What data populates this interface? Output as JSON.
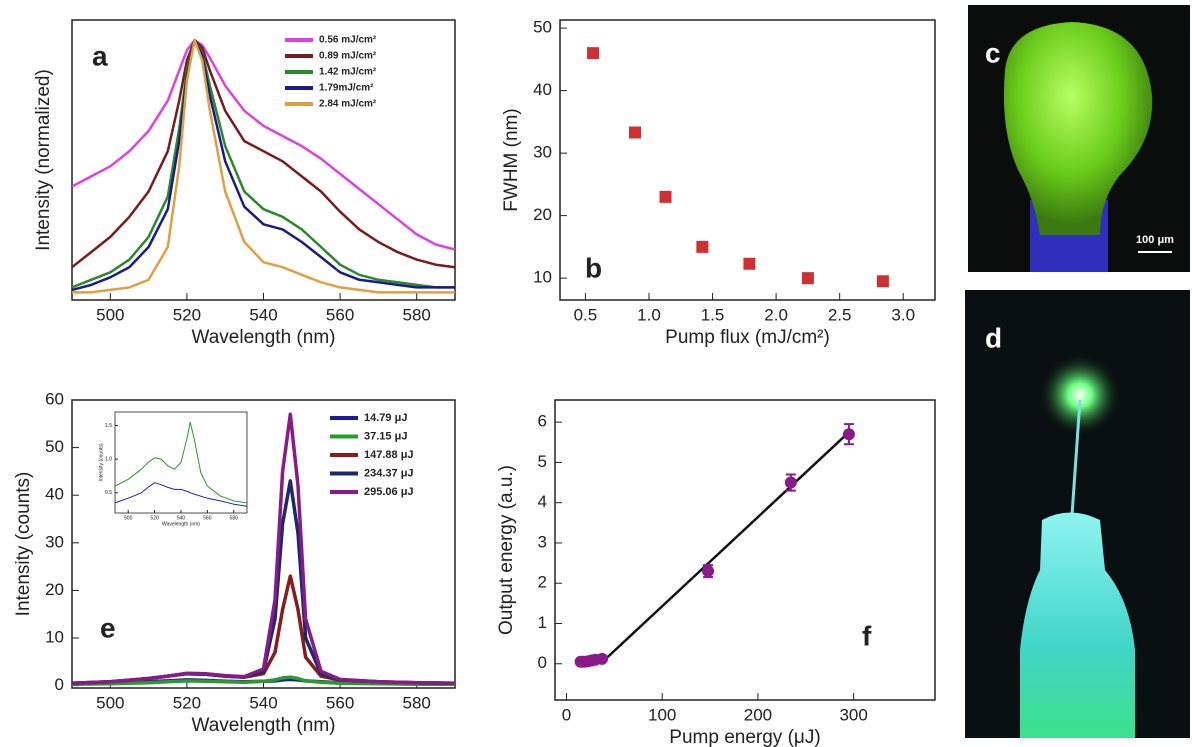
{
  "chart_data": [
    {
      "type": "line",
      "panel_label": "a",
      "xlabel": "Wavelength (nm)",
      "ylabel": "Intensity (normalized)",
      "x": [
        490,
        495,
        500,
        505,
        510,
        515,
        518,
        520,
        522,
        524,
        526,
        530,
        535,
        540,
        545,
        550,
        555,
        560,
        565,
        570,
        575,
        580,
        585,
        590
      ],
      "series": [
        {
          "name": "0.56 mJ/cm²",
          "color": "#e040e0",
          "values": [
            0.42,
            0.46,
            0.5,
            0.56,
            0.64,
            0.76,
            0.88,
            0.96,
            1.0,
            0.98,
            0.93,
            0.82,
            0.72,
            0.66,
            0.62,
            0.58,
            0.53,
            0.47,
            0.41,
            0.35,
            0.29,
            0.23,
            0.19,
            0.17
          ]
        },
        {
          "name": "0.89 mJ/cm²",
          "color": "#7a1a1a",
          "values": [
            0.1,
            0.16,
            0.22,
            0.3,
            0.4,
            0.56,
            0.76,
            0.92,
            1.0,
            0.97,
            0.88,
            0.72,
            0.6,
            0.56,
            0.52,
            0.46,
            0.4,
            0.32,
            0.25,
            0.2,
            0.16,
            0.13,
            0.11,
            0.1
          ]
        },
        {
          "name": "1.42 mJ/cm²",
          "color": "#2a8a2a",
          "values": [
            0.02,
            0.05,
            0.08,
            0.13,
            0.22,
            0.38,
            0.65,
            0.88,
            1.0,
            0.95,
            0.82,
            0.58,
            0.4,
            0.33,
            0.3,
            0.25,
            0.18,
            0.11,
            0.07,
            0.05,
            0.04,
            0.03,
            0.02,
            0.02
          ]
        },
        {
          "name": "1.79mJ/cm²",
          "color": "#1a1a8a",
          "values": [
            0.01,
            0.03,
            0.06,
            0.1,
            0.18,
            0.33,
            0.6,
            0.86,
            1.0,
            0.94,
            0.78,
            0.52,
            0.34,
            0.27,
            0.25,
            0.2,
            0.14,
            0.08,
            0.05,
            0.04,
            0.03,
            0.02,
            0.02,
            0.02
          ]
        },
        {
          "name": "2.84 mJ/cm²",
          "color": "#e0a040",
          "values": [
            0.0,
            0.0,
            0.01,
            0.02,
            0.05,
            0.18,
            0.5,
            0.84,
            1.0,
            0.92,
            0.72,
            0.4,
            0.2,
            0.12,
            0.1,
            0.07,
            0.04,
            0.02,
            0.01,
            0.0,
            0.0,
            0.0,
            0.0,
            0.0
          ]
        }
      ],
      "xlim": [
        490,
        590
      ],
      "xticks": [
        500,
        520,
        540,
        560,
        580
      ],
      "ylim": [
        -0.03,
        1.08
      ]
    },
    {
      "type": "scatter",
      "panel_label": "b",
      "xlabel": "Pump flux (mJ/cm²)",
      "ylabel": "FWHM (nm)",
      "color": "#d03030",
      "x": [
        0.56,
        0.89,
        1.13,
        1.42,
        1.79,
        2.25,
        2.84
      ],
      "values": [
        46,
        33.3,
        23,
        15,
        12.3,
        10,
        9.5
      ],
      "xlim": [
        0.3,
        3.25
      ],
      "xticks": [
        0.5,
        {
          "value": 1.0,
          "label": "1.0"
        },
        1.5,
        {
          "value": 2.0,
          "label": "2.0"
        },
        2.5,
        {
          "value": 3.0,
          "label": "3.0"
        }
      ],
      "ylim": [
        6.5,
        51.3
      ],
      "yticks": [
        10,
        20,
        30,
        40,
        50
      ]
    },
    {
      "type": "line",
      "panel_label": "e",
      "xlabel": "Wavelength (nm)",
      "ylabel": "Intensity (counts)",
      "x": [
        490,
        500,
        510,
        515,
        520,
        525,
        530,
        535,
        540,
        543,
        545,
        547,
        549,
        551,
        555,
        560,
        570,
        580,
        590
      ],
      "series": [
        {
          "name": "14.79 μJ",
          "color": "#1a1aa0",
          "values": [
            0.5,
            0.6,
            0.8,
            1.0,
            1.2,
            1.1,
            0.9,
            0.8,
            0.9,
            1.0,
            1.2,
            1.3,
            1.2,
            1.0,
            0.8,
            0.6,
            0.5,
            0.4,
            0.4
          ]
        },
        {
          "name": "37.15 μJ",
          "color": "#2a9a2a",
          "values": [
            0.3,
            0.4,
            0.6,
            0.8,
            1.0,
            0.9,
            0.8,
            0.7,
            0.9,
            1.2,
            1.6,
            1.8,
            1.5,
            1.0,
            0.7,
            0.5,
            0.4,
            0.3,
            0.3
          ]
        },
        {
          "name": "147.88 μJ",
          "color": "#8b1a1a",
          "values": [
            0.5,
            0.8,
            1.5,
            2.0,
            2.5,
            2.4,
            2.0,
            1.8,
            2.5,
            7,
            16,
            23,
            16,
            6,
            2,
            1.2,
            0.8,
            0.6,
            0.5
          ]
        },
        {
          "name": "234.37 μJ",
          "color": "#1a2a6a",
          "values": [
            0.5,
            0.8,
            1.5,
            2.0,
            2.5,
            2.4,
            2.0,
            1.8,
            3,
            14,
            34,
            43,
            32,
            10,
            2.5,
            1.2,
            0.8,
            0.6,
            0.5
          ]
        },
        {
          "name": "295.06 μJ",
          "color": "#8a1a8a",
          "values": [
            0.5,
            0.8,
            1.5,
            2.0,
            2.6,
            2.5,
            2.1,
            1.9,
            3.5,
            18,
            45,
            57,
            42,
            14,
            3,
            1.3,
            0.8,
            0.6,
            0.5
          ]
        }
      ],
      "xlim": [
        490,
        590
      ],
      "xticks": [
        500,
        520,
        540,
        560,
        580
      ],
      "ylim": [
        -0.5,
        60
      ],
      "yticks": [
        0,
        10,
        20,
        30,
        40,
        50,
        60
      ]
    },
    {
      "type": "line",
      "xlabel": "Wavelength (nm)",
      "ylabel": "Intensity (counts)",
      "x": [
        490,
        500,
        510,
        515,
        520,
        525,
        530,
        535,
        540,
        545,
        547,
        550,
        555,
        560,
        570,
        580,
        590
      ],
      "series": [
        {
          "color": "#2a9a2a",
          "values": [
            0.6,
            0.7,
            0.85,
            0.95,
            1.02,
            1.0,
            0.9,
            0.85,
            0.95,
            1.35,
            1.55,
            1.3,
            0.8,
            0.6,
            0.45,
            0.38,
            0.35
          ]
        },
        {
          "color": "#1a2aa0",
          "values": [
            0.35,
            0.42,
            0.5,
            0.58,
            0.65,
            0.62,
            0.58,
            0.55,
            0.55,
            0.52,
            0.5,
            0.48,
            0.45,
            0.42,
            0.38,
            0.33,
            0.3
          ]
        }
      ],
      "xlim": [
        490,
        590
      ],
      "xticks": [
        500,
        520,
        540,
        560,
        580
      ],
      "ylim": [
        0.2,
        1.7
      ],
      "yticks": [
        0.5,
        {
          "value": 1.0,
          "label": "1.0"
        },
        1.5
      ]
    },
    {
      "type": "scatter",
      "panel_label": "f",
      "xlabel": "Pump energy  (μJ)",
      "ylabel": "Output energy (a.u.)",
      "color": "#8a1a8a",
      "x": [
        14.79,
        18,
        22,
        26,
        30,
        37.15,
        147.88,
        234.37,
        295.06
      ],
      "values": [
        0.05,
        0.05,
        0.06,
        0.08,
        0.1,
        0.12,
        2.3,
        4.5,
        5.7
      ],
      "errors": [
        0.05,
        0.05,
        0.05,
        0.05,
        0.05,
        0.05,
        0.15,
        0.2,
        0.25
      ],
      "fit": {
        "x": [
          40,
          295.06
        ],
        "y": [
          0.1,
          5.75
        ],
        "color": "#111111"
      },
      "xlim": [
        -12,
        385
      ],
      "xticks": [
        0,
        100,
        200,
        300
      ],
      "ylim": [
        -0.9,
        6.55
      ],
      "yticks": [
        0,
        1,
        2,
        3,
        4,
        5,
        6
      ]
    }
  ],
  "photos": [
    {
      "label": "c",
      "scale_bar": "100 μm"
    },
    {
      "label": "d"
    }
  ]
}
